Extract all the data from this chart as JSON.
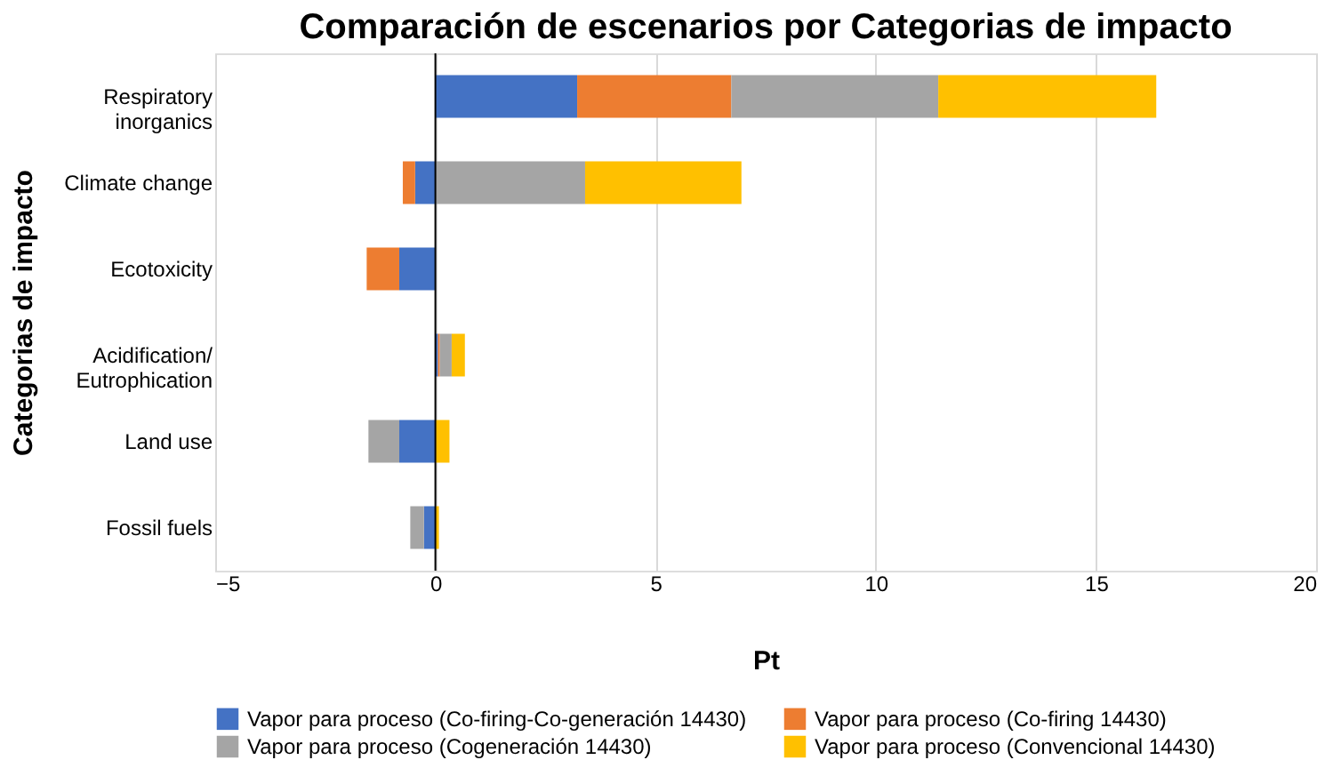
{
  "chart_data": {
    "type": "bar",
    "orientation": "horizontal",
    "stacked": true,
    "title": "Comparación de escenarios por Categorias de impacto",
    "xlabel": "Pt",
    "ylabel": "Categorias de impacto",
    "categories": [
      "Respiratory inorganics",
      "Climate change",
      "Ecotoxicity",
      "Acidification/ Eutrophication",
      "Land use",
      "Fossil fuels"
    ],
    "series": [
      {
        "name": "Vapor para proceso (Co-firing-Co-generación 14430)",
        "color": "#4472c4",
        "values": [
          3.22,
          -0.46,
          -0.82,
          0.06,
          -0.82,
          -0.26
        ]
      },
      {
        "name": "Vapor para proceso (Co-firing 14430)",
        "color": "#ed7d31",
        "values": [
          3.5,
          -0.28,
          -0.74,
          0.04,
          null,
          null
        ]
      },
      {
        "name": "Vapor para proceso (Cogeneración 14430)",
        "color": "#a5a5a5",
        "values": [
          4.7,
          3.4,
          null,
          0.27,
          -0.7,
          -0.31
        ]
      },
      {
        "name": "Vapor para proceso (Convencional 14430)",
        "color": "#ffc000",
        "values": [
          4.95,
          3.55,
          0,
          0.3,
          0.32,
          0.08
        ]
      }
    ],
    "xlim": [
      -5,
      20
    ],
    "xticks": [
      -5,
      0,
      5,
      10,
      15,
      20
    ],
    "grid": "x",
    "legend": "bottom"
  }
}
